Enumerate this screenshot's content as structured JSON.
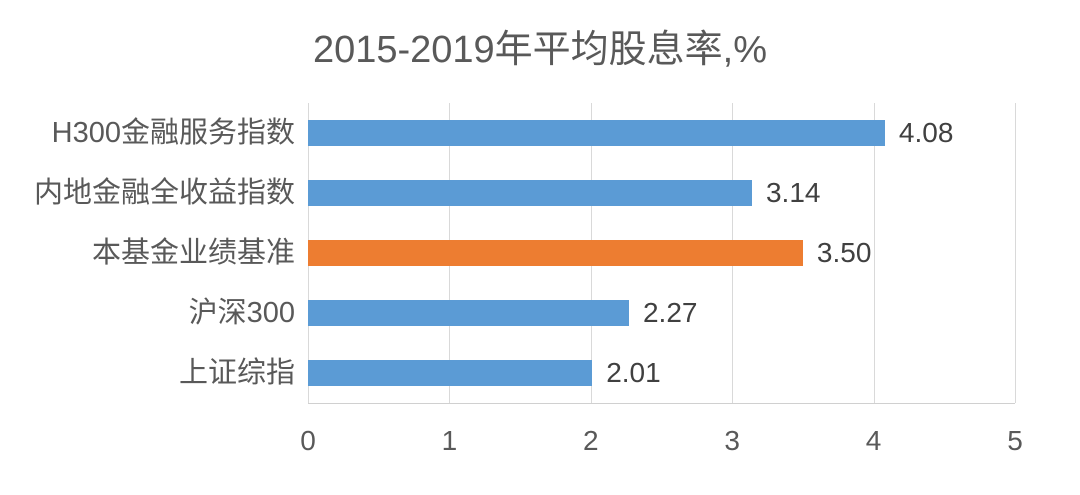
{
  "chart_data": {
    "type": "bar",
    "orientation": "horizontal",
    "title": "2015-2019年平均股息率,%",
    "categories": [
      "H300金融服务指数",
      "内地金融全收益指数",
      "本基金业绩基准",
      "沪深300",
      "上证综指"
    ],
    "values": [
      4.08,
      3.14,
      3.5,
      2.27,
      2.01
    ],
    "value_labels": [
      "4.08",
      "3.14",
      "3.50",
      "2.27",
      "2.01"
    ],
    "bar_colors": [
      "#5B9BD5",
      "#5B9BD5",
      "#ED7D31",
      "#5B9BD5",
      "#5B9BD5"
    ],
    "xlabel": "",
    "ylabel": "",
    "xlim": [
      0,
      5
    ],
    "x_ticks": [
      "0",
      "1",
      "2",
      "3",
      "4",
      "5"
    ],
    "grid": "vertical-gridlines-on",
    "legend": "none",
    "colors": {
      "bar_default": "#5B9BD5",
      "bar_highlight": "#ED7D31",
      "gridline": "#d9d9d9",
      "title_text": "#595959",
      "category_text": "#595959",
      "value_text": "#404040",
      "tick_text": "#595959",
      "background": "#ffffff"
    }
  }
}
